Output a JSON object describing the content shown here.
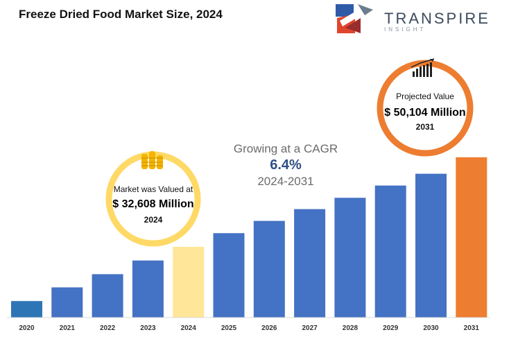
{
  "title": "Freeze Dried Food Market Size, 2024",
  "logo": {
    "word": "TRANSPIRE",
    "sub": "INSIGHT"
  },
  "chart_data": {
    "type": "bar",
    "categories": [
      "2020",
      "2021",
      "2022",
      "2023",
      "2024",
      "2025",
      "2026",
      "2027",
      "2028",
      "2029",
      "2030",
      "2031"
    ],
    "values": [
      3.5,
      6.4,
      9.2,
      12.1,
      15.0,
      17.9,
      20.5,
      23.0,
      25.4,
      28.0,
      30.5,
      34.0
    ],
    "bar_colors": [
      "#2e75b6",
      "#4472c4",
      "#4472c4",
      "#4472c4",
      "#ffe699",
      "#4472c4",
      "#4472c4",
      "#4472c4",
      "#4472c4",
      "#4472c4",
      "#4472c4",
      "#ed7d31"
    ],
    "ylim": [
      0,
      35
    ],
    "grid": false,
    "xlabel": "",
    "ylabel": ""
  },
  "cagr": {
    "label": "Growing at a CAGR",
    "value": "6.4%",
    "range": "2024-2031"
  },
  "market_valued": {
    "label": "Market was Valued at",
    "value": "$ 32,608 Million",
    "year": "2024",
    "ring_color": "#ffd966",
    "icon": "coins-icon"
  },
  "projected": {
    "label": "Projected Value",
    "value": "$ 50,104 Million",
    "year": "2031",
    "ring_color": "#ed7d31",
    "icon": "growth-bars-icon"
  }
}
